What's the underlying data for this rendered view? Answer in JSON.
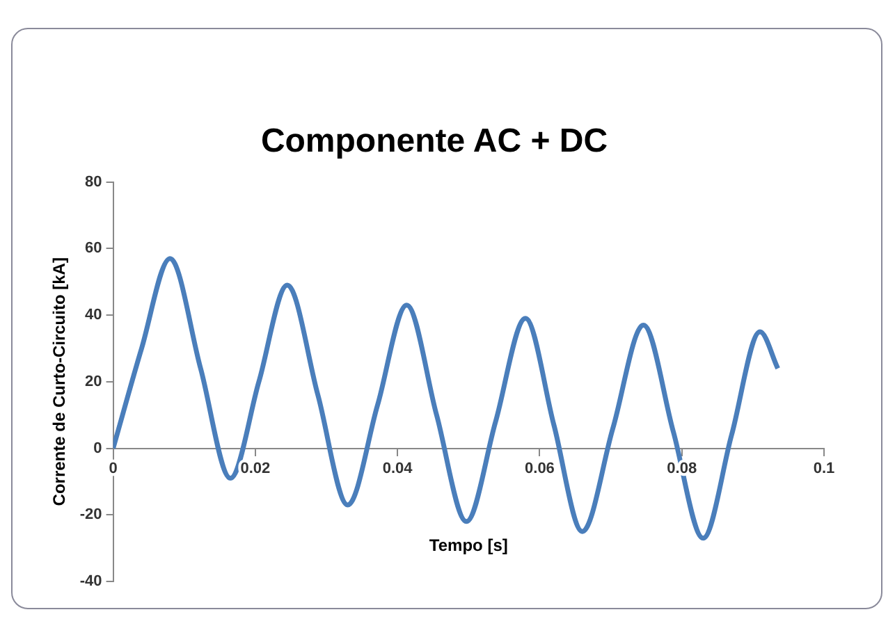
{
  "chart_data": {
    "type": "line",
    "title": "Componente AC + DC",
    "xlabel": "Tempo [s]",
    "ylabel": "Corrente de Curto-Circuito [kA]",
    "x": [
      0,
      0.004,
      0.008,
      0.0123,
      0.0165,
      0.0205,
      0.0245,
      0.0288,
      0.033,
      0.0372,
      0.0413,
      0.0455,
      0.0497,
      0.0538,
      0.058,
      0.062,
      0.066,
      0.0703,
      0.0746,
      0.0788,
      0.083,
      0.087,
      0.091,
      0.0935
    ],
    "series": [
      {
        "color": "#4a7ebb",
        "values": [
          0,
          30,
          57,
          24,
          -9,
          20,
          49,
          16,
          -17,
          13,
          43,
          10,
          -22,
          8,
          39,
          7,
          -25,
          6,
          37,
          5,
          -27,
          4,
          35,
          24
        ]
      }
    ],
    "xlim": [
      0,
      0.1
    ],
    "xticks": [
      0,
      0.02,
      0.04,
      0.06,
      0.08,
      0.1
    ],
    "ylim": [
      -40,
      80
    ],
    "yticks": [
      -40,
      -20,
      0,
      20,
      40,
      60,
      80
    ],
    "grid": false,
    "legend": false,
    "marker": "none",
    "line_style": "solid"
  }
}
